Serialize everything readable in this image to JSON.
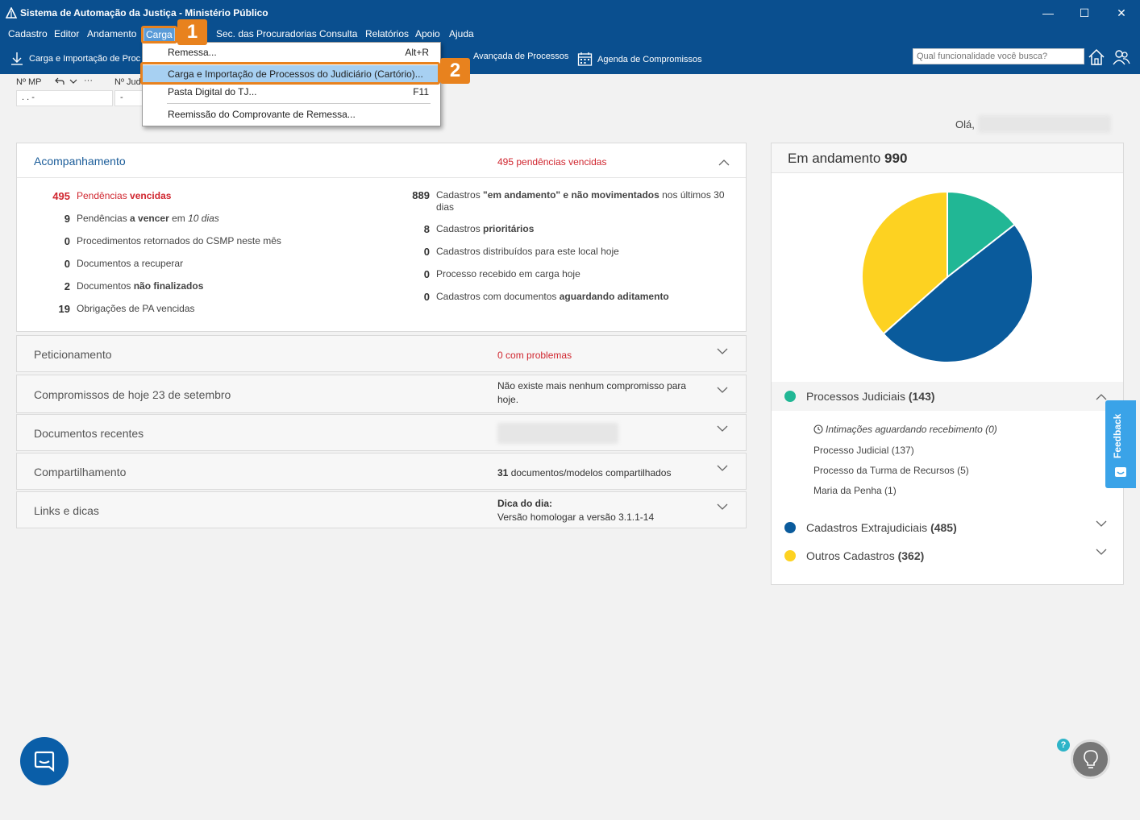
{
  "window": {
    "title": "Sistema de Automação da Justiça - Ministério Público",
    "minimize": "—",
    "maximize": "☐",
    "close": "✕"
  },
  "menu": {
    "items": [
      "Cadastro",
      "Editor",
      "Andamento",
      "Carga",
      "Sec. das Procuradorias",
      "Consulta",
      "Relatórios",
      "Apoio",
      "Ajuda"
    ]
  },
  "toolbar": {
    "carga_label": "Carga e Importação de Proc",
    "avancada_label": "Avançada de Processos",
    "agenda_label": "Agenda de Compromissos",
    "search_placeholder": "Qual funcionalidade você busca?"
  },
  "fields": {
    "mp_label": "Nº MP",
    "mp_value": ".    .      -",
    "jud_label": "Nº Jud",
    "jud_value": "-",
    "more": "···"
  },
  "greeting": "Olá,",
  "dropdown": {
    "items": [
      {
        "label": "Remessa...",
        "shortcut": "Alt+R"
      },
      {
        "label": "Carga e Importação de Processos do Judiciário (Cartório)...",
        "shortcut": ""
      },
      {
        "label": "Pasta Digital do TJ...",
        "shortcut": "F11"
      },
      {
        "label": "Reemissão do Comprovante de Remessa...",
        "shortcut": ""
      }
    ]
  },
  "callouts": [
    "1",
    "2"
  ],
  "acompanhamento": {
    "title": "Acompanhamento",
    "header_count": "495",
    "header_text": "pendências vencidas",
    "left": [
      {
        "num": "495",
        "pre": "Pendências ",
        "bold": "vencidas",
        "post": "",
        "red": true
      },
      {
        "num": "9",
        "pre": "Pendências ",
        "bold": "a vencer",
        "post": " em ",
        "italic": "10 dias"
      },
      {
        "num": "0",
        "pre": "Procedimentos retornados do CSMP neste mês",
        "bold": "",
        "post": ""
      },
      {
        "num": "0",
        "pre": "Documentos a recuperar",
        "bold": "",
        "post": ""
      },
      {
        "num": "2",
        "pre": "Documentos ",
        "bold": "não finalizados",
        "post": ""
      },
      {
        "num": "19",
        "pre": "Obrigações de PA vencidas",
        "bold": "",
        "post": ""
      }
    ],
    "right": [
      {
        "num": "889",
        "pre": "Cadastros ",
        "bold": "\"em andamento\" e não movimentados",
        "post": " nos últimos 30 dias"
      },
      {
        "num": "8",
        "pre": "Cadastros ",
        "bold": "prioritários",
        "post": ""
      },
      {
        "num": "0",
        "pre": "Cadastros distribuídos para este local hoje",
        "bold": "",
        "post": ""
      },
      {
        "num": "0",
        "pre": "Processo recebido em carga hoje",
        "bold": "",
        "post": ""
      },
      {
        "num": "0",
        "pre": "Cadastros com documentos ",
        "bold": "aguardando aditamento",
        "post": ""
      }
    ]
  },
  "sections": [
    {
      "title": "Peticionamento",
      "count": "0",
      "info": "com problemas"
    },
    {
      "title": "Compromissos de hoje 23 de setembro",
      "info": "Não existe mais nenhum compromisso para hoje."
    },
    {
      "title": "Documentos recentes",
      "info": ""
    },
    {
      "title": "Compartilhamento",
      "count": "31",
      "info": "documentos/modelos compartilhados"
    },
    {
      "title": "Links e dicas",
      "tip_title": "Dica do dia:",
      "info": "Versão homologar a versão 3.1.1-14"
    }
  ],
  "em_andamento": {
    "title": "Em andamento",
    "total": "990"
  },
  "chart_data": {
    "type": "pie",
    "categories": [
      "Processos Judiciais",
      "Cadastros Extrajudiciais",
      "Outros Cadastros"
    ],
    "values": [
      143,
      485,
      362
    ],
    "colors": [
      "#21b795",
      "#0a5b9c",
      "#fdd221"
    ]
  },
  "legend": [
    {
      "label": "Processos Judiciais",
      "count": "(143)",
      "color": "#21b795"
    },
    {
      "label": "Cadastros Extrajudiciais",
      "count": "(485)",
      "color": "#0a5b9c"
    },
    {
      "label": "Outros Cadastros",
      "count": "(362)",
      "color": "#fdd221"
    }
  ],
  "judiciais_sub": [
    "Intimações aguardando recebimento (0)",
    "Processo Judicial (137)",
    "Processo da Turma de Recursos (5)",
    "Maria da Penha (1)"
  ],
  "feedback_label": "Feedback",
  "help_badge": "?"
}
